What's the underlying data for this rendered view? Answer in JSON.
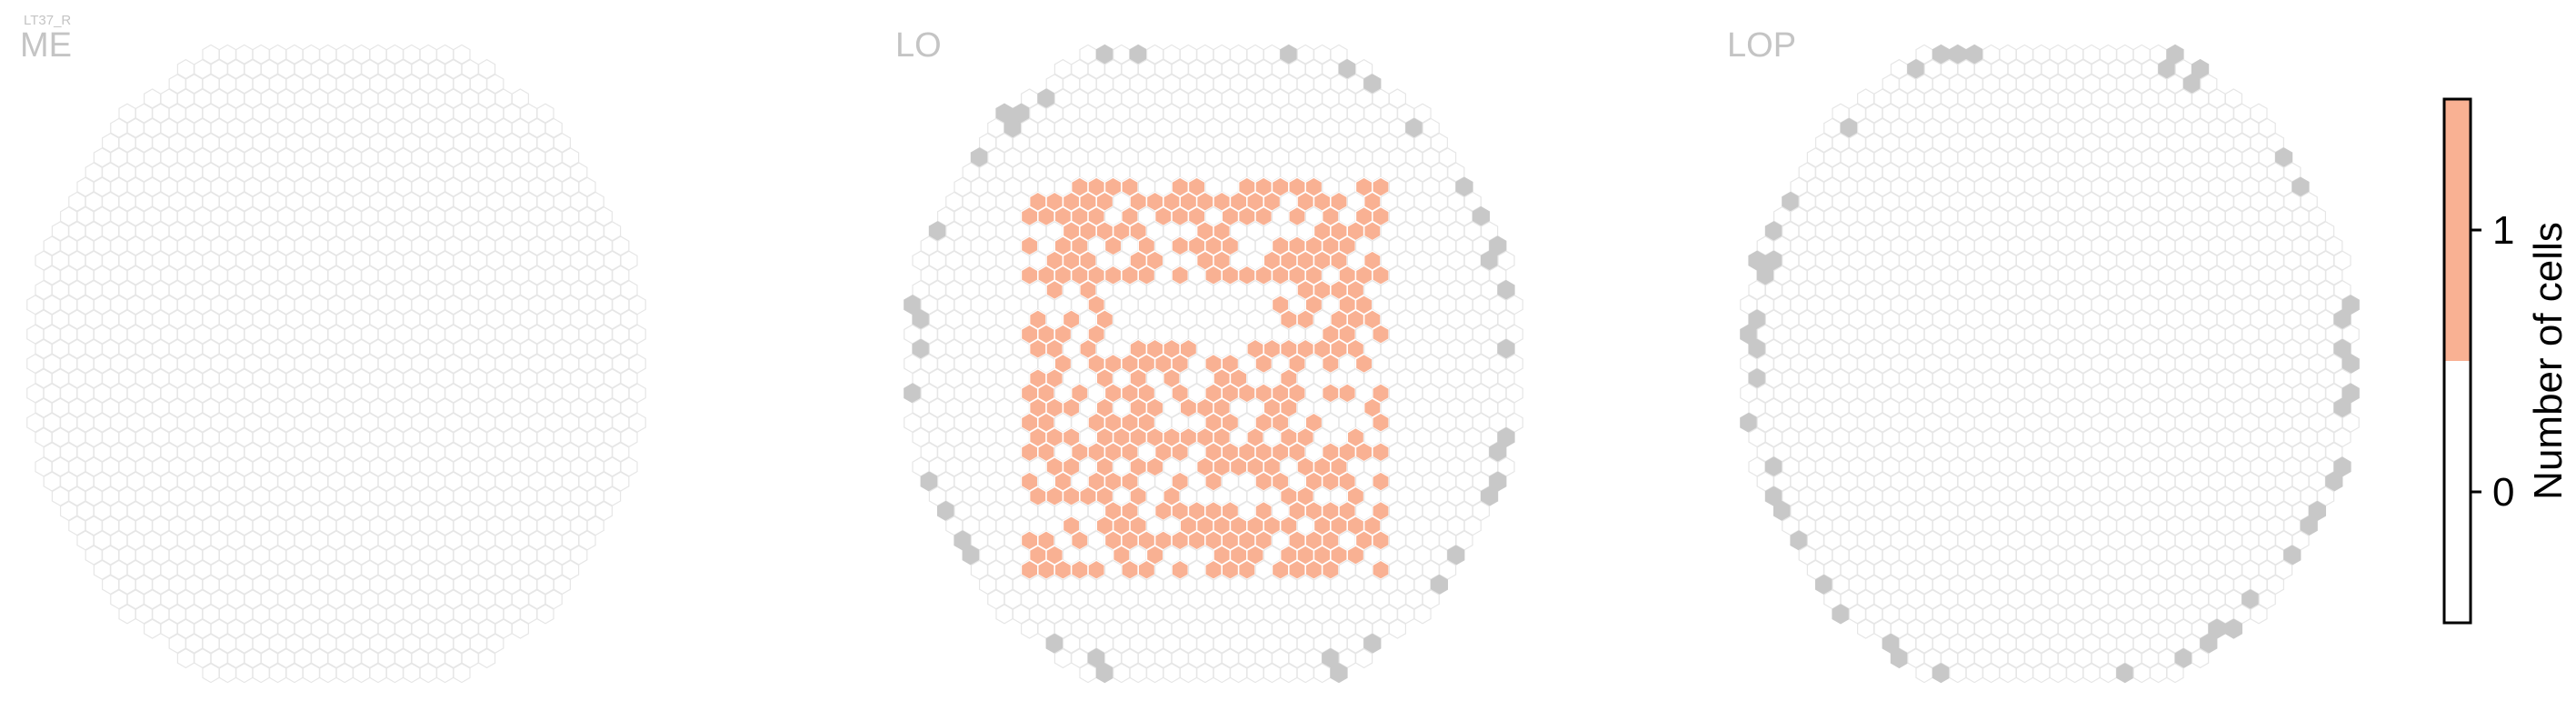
{
  "figure": {
    "cell_type": "LT37_R"
  },
  "chart_data": {
    "type": "heatmap",
    "description_hidden": false,
    "panels": [
      {
        "name": "ME",
        "columns": 37,
        "rows": 41,
        "highlight_color": "#f9b193",
        "edge_color": "#c8c8c8",
        "counts": {}
      },
      {
        "name": "LO",
        "columns": 37,
        "rows": 41,
        "highlight_color": "#f9b193",
        "edge_color": "#c8c8c8",
        "counts": {}
      },
      {
        "name": "LOP",
        "columns": 37,
        "rows": 41,
        "highlight_color": "#f9b193",
        "edge_color": "#c8c8c8",
        "counts": {}
      }
    ],
    "colorbar": {
      "title": "Number of cells",
      "ticks": [
        "0",
        "1"
      ],
      "tick_values": [
        0,
        1
      ],
      "range": [
        -0.5,
        1.5
      ],
      "colors": [
        {
          "from": -0.5,
          "to": 0.5,
          "color": "#ffffff"
        },
        {
          "from": 0.5,
          "to": 1.5,
          "color": "#f9b193"
        }
      ]
    },
    "colors": {
      "empty_fill": "#ffffff",
      "empty_edge": "#e6e6e6",
      "boundary_fill": "#c8c8c8",
      "active_fill": "#f9b193",
      "active_edge": "#ffffff"
    }
  }
}
